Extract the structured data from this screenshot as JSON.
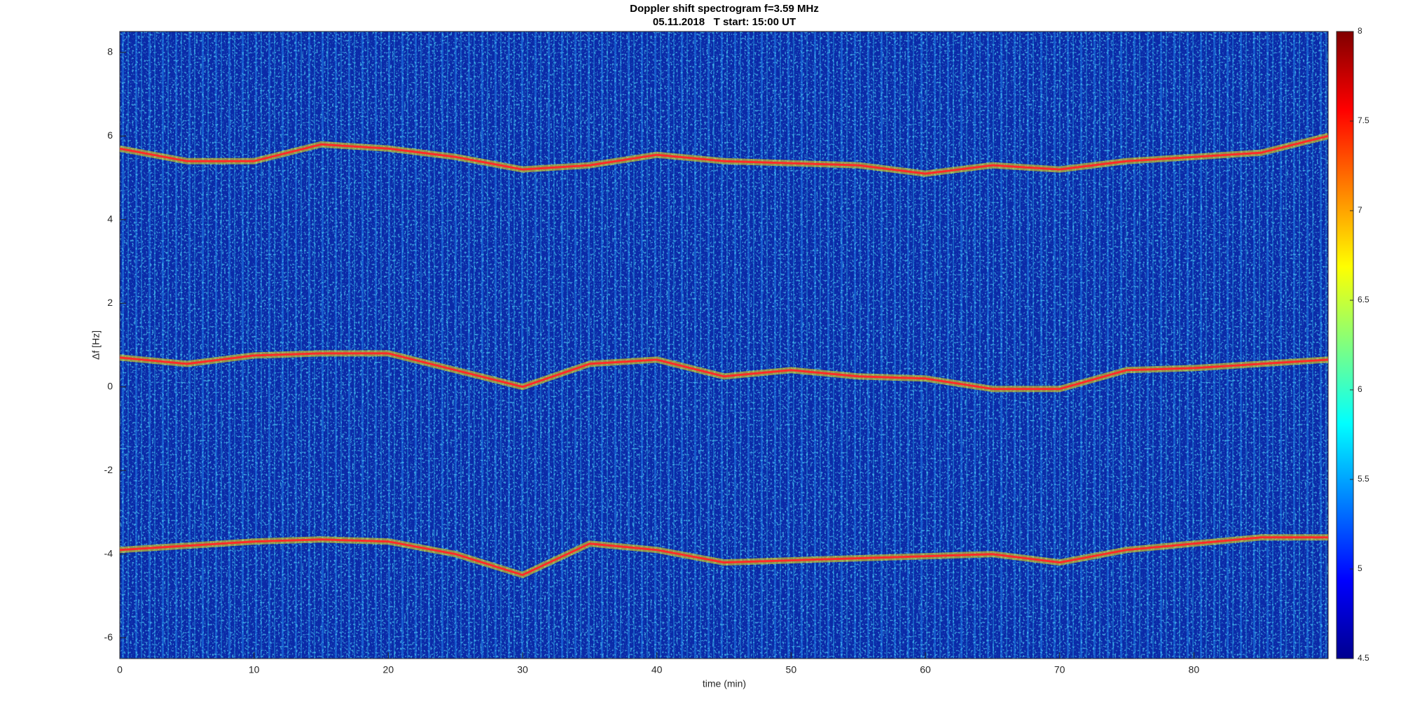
{
  "chart_data": {
    "type": "spectrogram",
    "title": "Doppler shift spectrogram f=3.59 MHz",
    "subtitle": "05.11.2018   T start: 15:00 UT",
    "xlabel": "time (min)",
    "ylabel": "Δf [Hz]",
    "xlim": [
      0,
      90
    ],
    "xticks": [
      0,
      10,
      20,
      30,
      40,
      50,
      60,
      70,
      80
    ],
    "ylim": [
      -6.5,
      8.5
    ],
    "yticks": [
      -6,
      -4,
      -2,
      0,
      2,
      4,
      6,
      8
    ],
    "clim": [
      4.5,
      8
    ],
    "cticks": [
      4.5,
      5,
      5.5,
      6,
      6.5,
      7,
      7.5,
      8
    ],
    "colormap": "jet",
    "x": [
      0,
      5,
      10,
      15,
      20,
      25,
      30,
      35,
      40,
      45,
      50,
      55,
      60,
      65,
      70,
      75,
      80,
      85,
      90
    ],
    "series": [
      {
        "color": "#ff2a2a",
        "values": [
          5.7,
          5.4,
          5.4,
          5.8,
          5.7,
          5.5,
          5.2,
          5.3,
          5.55,
          5.4,
          5.35,
          5.3,
          5.1,
          5.3,
          5.2,
          5.4,
          5.5,
          5.6,
          6.0
        ]
      },
      {
        "color": "#ff2a2a",
        "values": [
          0.7,
          0.55,
          0.75,
          0.8,
          0.8,
          0.4,
          0.0,
          0.55,
          0.65,
          0.25,
          0.4,
          0.25,
          0.2,
          -0.05,
          -0.05,
          0.4,
          0.45,
          0.55,
          0.65
        ]
      },
      {
        "color": "#ff2a2a",
        "values": [
          -3.9,
          -3.8,
          -3.7,
          -3.65,
          -3.7,
          -4.0,
          -4.5,
          -3.75,
          -3.9,
          -4.2,
          -4.15,
          -4.1,
          -4.05,
          -4.0,
          -4.2,
          -3.9,
          -3.75,
          -3.6,
          -3.6
        ]
      }
    ]
  }
}
